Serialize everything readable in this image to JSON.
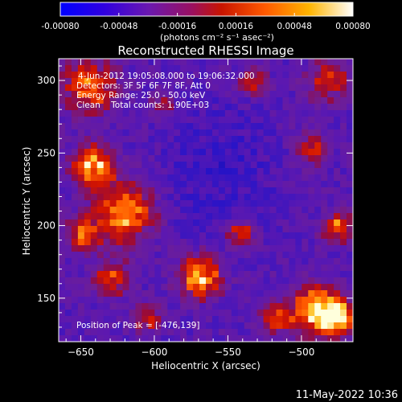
{
  "chart_data": {
    "type": "heatmap",
    "title": "Reconstructed RHESSI Image",
    "xlabel": "Heliocentric X (arcsec)",
    "ylabel": "Heliocentric Y (arcsec)",
    "xlim": [
      -665,
      -465
    ],
    "ylim": [
      120,
      315
    ],
    "x_ticks": [
      -650,
      -600,
      -550,
      -500
    ],
    "y_ticks": [
      150,
      200,
      250,
      300
    ],
    "colorbar": {
      "ticks": [
        "-0.00080",
        "-0.00048",
        "-0.00016",
        "0.00016",
        "0.00048",
        "0.00080"
      ],
      "range": [
        -0.0008,
        0.0008
      ],
      "unit_label": "(photons cm⁻² s⁻¹ asec⁻²)",
      "colors": [
        "#0000ff",
        "#4400cc",
        "#7a1fa0",
        "#b01010",
        "#ff3c00",
        "#ff9a00",
        "#ffff60",
        "#ffffff"
      ]
    },
    "annotations": [
      "4-Jun-2012 19:05:08.000 to 19:06:32.000",
      "Detectors: 3F 5F 6F 7F 8F, Att 0",
      "Energy Range: 25.0 - 50.0 keV",
      "Clean    Total counts: 1.90E+03"
    ],
    "peak_label": "Position of Peak = [-476,139]",
    "peak": [
      -476,
      139
    ]
  },
  "footer": {
    "timestamp": "11-May-2022 10:36"
  }
}
